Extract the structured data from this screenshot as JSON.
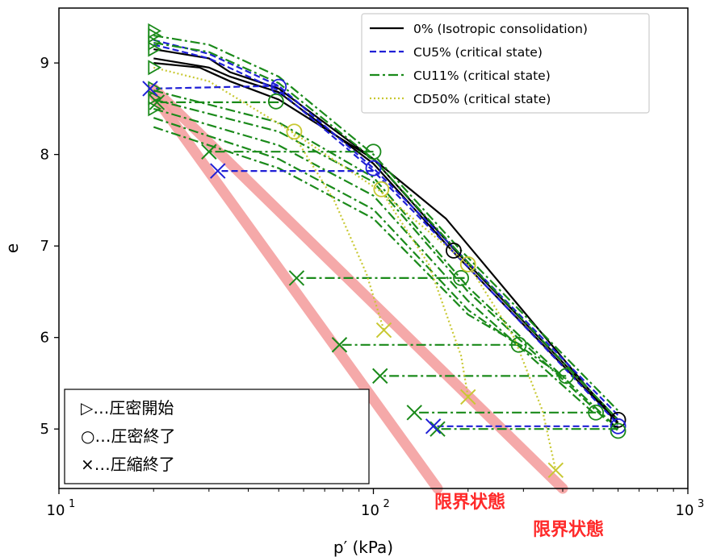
{
  "chart_data": {
    "type": "line",
    "xlabel": "p′ (kPa)",
    "ylabel": "e",
    "xscale": "log",
    "xlim": [
      10,
      1000
    ],
    "ylim": [
      4.35,
      9.6
    ],
    "x_ticks": [
      {
        "value": 10,
        "label": "10",
        "exp": "1"
      },
      {
        "value": 100,
        "label": "10",
        "exp": "2"
      },
      {
        "value": 1000,
        "label": "10",
        "exp": "3"
      }
    ],
    "y_ticks": [
      5,
      6,
      7,
      8,
      9
    ],
    "grid": false,
    "legend": {
      "position": "top-right",
      "entries": [
        {
          "label": "0% (Isotropic consolidation)",
          "color": "#000000",
          "dash": "solid"
        },
        {
          "label": "CU5% (critical state)",
          "color": "#1f1fd6",
          "dash": "dashed"
        },
        {
          "label": "CU11% (critical state)",
          "color": "#1a8a1a",
          "dash": "dashdot"
        },
        {
          "label": "CD50% (critical state)",
          "color": "#c8c832",
          "dash": "dotted"
        }
      ]
    },
    "critical_lines": {
      "color": "#f4a0a0",
      "labels": [
        "限界状態",
        "限界状態"
      ],
      "lines": [
        {
          "x": [
            20,
            160
          ],
          "y": [
            8.65,
            4.35
          ]
        },
        {
          "x": [
            20,
            400
          ],
          "y": [
            8.72,
            4.35
          ]
        }
      ]
    },
    "consolidation_lines": [
      {
        "name": "0% (Isotropic consolidation)",
        "color": "#000000",
        "dash": "solid",
        "x": [
          20,
          30,
          35,
          50,
          100,
          180,
          600
        ],
        "y": [
          9.15,
          9.05,
          8.9,
          8.72,
          7.95,
          6.97,
          5.1
        ]
      },
      {
        "name": "0% (Isotropic consolidation)",
        "color": "#000000",
        "dash": "solid",
        "x": [
          20,
          30,
          35,
          50,
          100,
          180,
          600
        ],
        "y": [
          9.05,
          8.95,
          8.85,
          8.68,
          7.9,
          6.93,
          5.07
        ]
      },
      {
        "name": "0% (Isotropic consolidation)",
        "color": "#000000",
        "dash": "solid",
        "x": [
          20,
          28,
          35,
          50,
          100,
          170,
          600
        ],
        "y": [
          9.0,
          8.95,
          8.8,
          8.6,
          7.95,
          7.3,
          5.05
        ]
      },
      {
        "name": "CU5% (critical state)",
        "color": "#1f1fd6",
        "dash": "dashed",
        "x": [
          20,
          30,
          50,
          100,
          190,
          600
        ],
        "y": [
          9.25,
          9.1,
          8.75,
          7.85,
          6.9,
          5.15
        ]
      },
      {
        "name": "CU5% (critical state)",
        "color": "#1f1fd6",
        "dash": "dashed",
        "x": [
          20,
          30,
          50,
          100,
          190,
          600
        ],
        "y": [
          9.2,
          9.05,
          8.7,
          7.82,
          6.85,
          5.05
        ]
      },
      {
        "name": "CU11% (critical state)",
        "color": "#1a8a1a",
        "dash": "dashdot",
        "x": [
          20,
          30,
          50,
          100,
          190,
          600
        ],
        "y": [
          9.3,
          9.2,
          8.85,
          8.0,
          6.95,
          5.2
        ]
      },
      {
        "name": "CU11% (critical state)",
        "color": "#1a8a1a",
        "dash": "dashdot",
        "x": [
          20,
          30,
          50,
          100,
          190,
          600
        ],
        "y": [
          9.22,
          9.12,
          8.78,
          7.95,
          6.9,
          5.1
        ]
      },
      {
        "name": "CU11% (critical state)",
        "color": "#1a8a1a",
        "dash": "dashdot",
        "x": [
          20,
          50,
          100,
          200,
          600
        ],
        "y": [
          8.7,
          8.35,
          7.75,
          6.55,
          5.0
        ]
      },
      {
        "name": "CU11% (critical state)",
        "color": "#1a8a1a",
        "dash": "dashdot",
        "x": [
          20,
          50,
          100,
          200,
          600
        ],
        "y": [
          8.6,
          8.25,
          7.7,
          6.5,
          4.98
        ]
      },
      {
        "name": "CU11% (critical state)",
        "color": "#1a8a1a",
        "dash": "dashdot",
        "x": [
          20,
          50,
          100,
          200,
          500
        ],
        "y": [
          8.5,
          8.1,
          7.55,
          6.4,
          5.18
        ]
      },
      {
        "name": "CU11% (critical state)",
        "color": "#1a8a1a",
        "dash": "dashdot",
        "x": [
          20,
          50,
          100,
          200,
          410
        ],
        "y": [
          8.4,
          7.95,
          7.4,
          6.3,
          5.55
        ]
      },
      {
        "name": "CU11% (critical state)",
        "color": "#1a8a1a",
        "dash": "dashdot",
        "x": [
          20,
          50,
          100,
          200,
          300
        ],
        "y": [
          8.3,
          7.85,
          7.3,
          6.25,
          5.9
        ]
      },
      {
        "name": "CD50% (critical state)",
        "color": "#c8c832",
        "dash": "dotted",
        "x": [
          20,
          30,
          55,
          105,
          200
        ],
        "y": [
          8.95,
          8.8,
          8.25,
          7.6,
          6.8
        ]
      }
    ],
    "critical_state_paths": [
      {
        "name": "CU5% (critical state)",
        "color": "#1f1fd6",
        "dash": "dashed",
        "x": [
          50,
          20
        ],
        "y": [
          8.75,
          8.72
        ]
      },
      {
        "name": "CU5% (critical state)",
        "color": "#1f1fd6",
        "dash": "dashed",
        "x": [
          100,
          32
        ],
        "y": [
          7.82,
          7.82
        ]
      },
      {
        "name": "CU5% (critical state)",
        "color": "#1f1fd6",
        "dash": "dashed",
        "x": [
          600,
          155
        ],
        "y": [
          5.03,
          5.03
        ]
      },
      {
        "name": "CU11% (critical state)",
        "color": "#1a8a1a",
        "dash": "dashdot",
        "x": [
          50,
          21
        ],
        "y": [
          8.57,
          8.57
        ]
      },
      {
        "name": "CU11% (critical state)",
        "color": "#1a8a1a",
        "dash": "dashdot",
        "x": [
          100,
          30
        ],
        "y": [
          8.03,
          8.03
        ]
      },
      {
        "name": "CU11% (critical state)",
        "color": "#1a8a1a",
        "dash": "dashdot",
        "x": [
          195,
          57
        ],
        "y": [
          6.65,
          6.65
        ]
      },
      {
        "name": "CU11% (critical state)",
        "color": "#1a8a1a",
        "dash": "dashdot",
        "x": [
          290,
          78
        ],
        "y": [
          5.92,
          5.92
        ]
      },
      {
        "name": "CU11% (critical state)",
        "color": "#1a8a1a",
        "dash": "dashdot",
        "x": [
          410,
          105
        ],
        "y": [
          5.58,
          5.58
        ]
      },
      {
        "name": "CU11% (critical state)",
        "color": "#1a8a1a",
        "dash": "dashdot",
        "x": [
          510,
          135
        ],
        "y": [
          5.18,
          5.18
        ]
      },
      {
        "name": "CU11% (critical state)",
        "color": "#1a8a1a",
        "dash": "dashdot",
        "x": [
          600,
          160
        ],
        "y": [
          5.0,
          5.0
        ]
      },
      {
        "name": "CD50% (critical state)",
        "color": "#c8c832",
        "dash": "dotted",
        "x": [
          55,
          75,
          95,
          108
        ],
        "y": [
          8.25,
          7.5,
          6.7,
          6.08
        ]
      },
      {
        "name": "CD50% (critical state)",
        "color": "#c8c832",
        "dash": "dotted",
        "x": [
          105,
          150,
          190,
          200
        ],
        "y": [
          7.62,
          6.8,
          5.8,
          5.35
        ]
      },
      {
        "name": "CD50% (critical state)",
        "color": "#c8c832",
        "dash": "dotted",
        "x": [
          200,
          280,
          345,
          380
        ],
        "y": [
          6.8,
          6.0,
          5.2,
          4.55
        ]
      }
    ],
    "markers": {
      "start": {
        "color": "#1a8a1a",
        "points": [
          {
            "x": 20,
            "y": 9.35
          },
          {
            "x": 20,
            "y": 9.3
          },
          {
            "x": 20,
            "y": 9.22
          },
          {
            "x": 20,
            "y": 9.15
          },
          {
            "x": 20,
            "y": 8.95
          },
          {
            "x": 20,
            "y": 8.72
          },
          {
            "x": 20,
            "y": 8.62
          },
          {
            "x": 20,
            "y": 8.5
          }
        ]
      },
      "end": {
        "color": "#000000",
        "points": [
          {
            "x": 50,
            "y": 8.74,
            "color": "#1f1fd6"
          },
          {
            "x": 49,
            "y": 8.58,
            "color": "#1a8a1a"
          },
          {
            "x": 100,
            "y": 8.03,
            "color": "#1a8a1a"
          },
          {
            "x": 100,
            "y": 7.85,
            "color": "#1f1fd6"
          },
          {
            "x": 56,
            "y": 8.25,
            "color": "#c8c832"
          },
          {
            "x": 106,
            "y": 7.62,
            "color": "#c8c832"
          },
          {
            "x": 180,
            "y": 6.95,
            "color": "#000000"
          },
          {
            "x": 190,
            "y": 6.65,
            "color": "#1a8a1a"
          },
          {
            "x": 200,
            "y": 6.8,
            "color": "#c8c832"
          },
          {
            "x": 290,
            "y": 5.92,
            "color": "#1a8a1a"
          },
          {
            "x": 410,
            "y": 5.58,
            "color": "#1a8a1a"
          },
          {
            "x": 510,
            "y": 5.18,
            "color": "#1a8a1a"
          },
          {
            "x": 600,
            "y": 5.1,
            "color": "#000000"
          },
          {
            "x": 600,
            "y": 5.03,
            "color": "#1f1fd6"
          },
          {
            "x": 600,
            "y": 4.98,
            "color": "#1a8a1a"
          }
        ]
      },
      "compression_end": {
        "points": [
          {
            "x": 19.5,
            "y": 8.72,
            "color": "#1f1fd6"
          },
          {
            "x": 20.5,
            "y": 8.57,
            "color": "#1a8a1a"
          },
          {
            "x": 32,
            "y": 7.82,
            "color": "#1f1fd6"
          },
          {
            "x": 30,
            "y": 8.03,
            "color": "#1a8a1a"
          },
          {
            "x": 57,
            "y": 6.65,
            "color": "#1a8a1a"
          },
          {
            "x": 78,
            "y": 5.92,
            "color": "#1a8a1a"
          },
          {
            "x": 108,
            "y": 6.08,
            "color": "#c8c832"
          },
          {
            "x": 105,
            "y": 5.58,
            "color": "#1a8a1a"
          },
          {
            "x": 135,
            "y": 5.18,
            "color": "#1a8a1a"
          },
          {
            "x": 160,
            "y": 5.0,
            "color": "#1a8a1a"
          },
          {
            "x": 155,
            "y": 5.03,
            "color": "#1f1fd6"
          },
          {
            "x": 200,
            "y": 5.35,
            "color": "#c8c832"
          },
          {
            "x": 380,
            "y": 4.55,
            "color": "#c8c832"
          }
        ]
      }
    },
    "key_box": {
      "entries": [
        "▷…圧密開始",
        "○…圧密終了",
        "×…圧縮終了"
      ]
    }
  }
}
